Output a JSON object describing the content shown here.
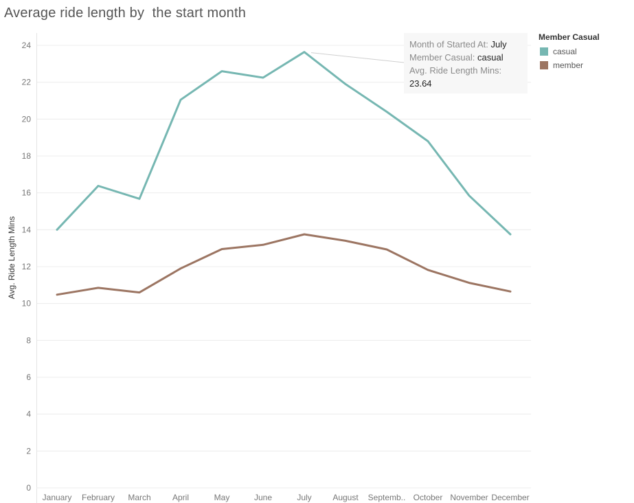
{
  "chart_data": {
    "type": "line",
    "title": "Average ride length by  the start month",
    "xlabel": "",
    "ylabel": "Avg. Ride Length Mins",
    "categories": [
      "January",
      "February",
      "March",
      "April",
      "May",
      "June",
      "July",
      "August",
      "Septemb..",
      "October",
      "November",
      "December"
    ],
    "yticks": [
      0,
      2,
      4,
      6,
      8,
      10,
      12,
      14,
      16,
      18,
      20,
      22,
      24
    ],
    "ylim": [
      0,
      24.6
    ],
    "grid": true,
    "legend_position": "top-right",
    "legend_title": "Member Casual",
    "series": [
      {
        "name": "casual",
        "color": "#76b7b2",
        "values": [
          14.0,
          16.38,
          15.68,
          21.05,
          22.6,
          22.25,
          23.64,
          21.9,
          20.4,
          18.8,
          15.85,
          13.75
        ]
      },
      {
        "name": "member",
        "color": "#9c7562",
        "values": [
          10.48,
          10.85,
          10.6,
          11.9,
          12.95,
          13.18,
          13.75,
          13.4,
          12.93,
          11.82,
          11.12,
          10.65
        ]
      }
    ]
  },
  "tooltip": {
    "month_label": "Month of Started At:",
    "month_value": "July",
    "member_label": "Member Casual:",
    "member_value": "casual",
    "avg_label": "Avg. Ride Length Mins:",
    "avg_value": "23.64"
  }
}
